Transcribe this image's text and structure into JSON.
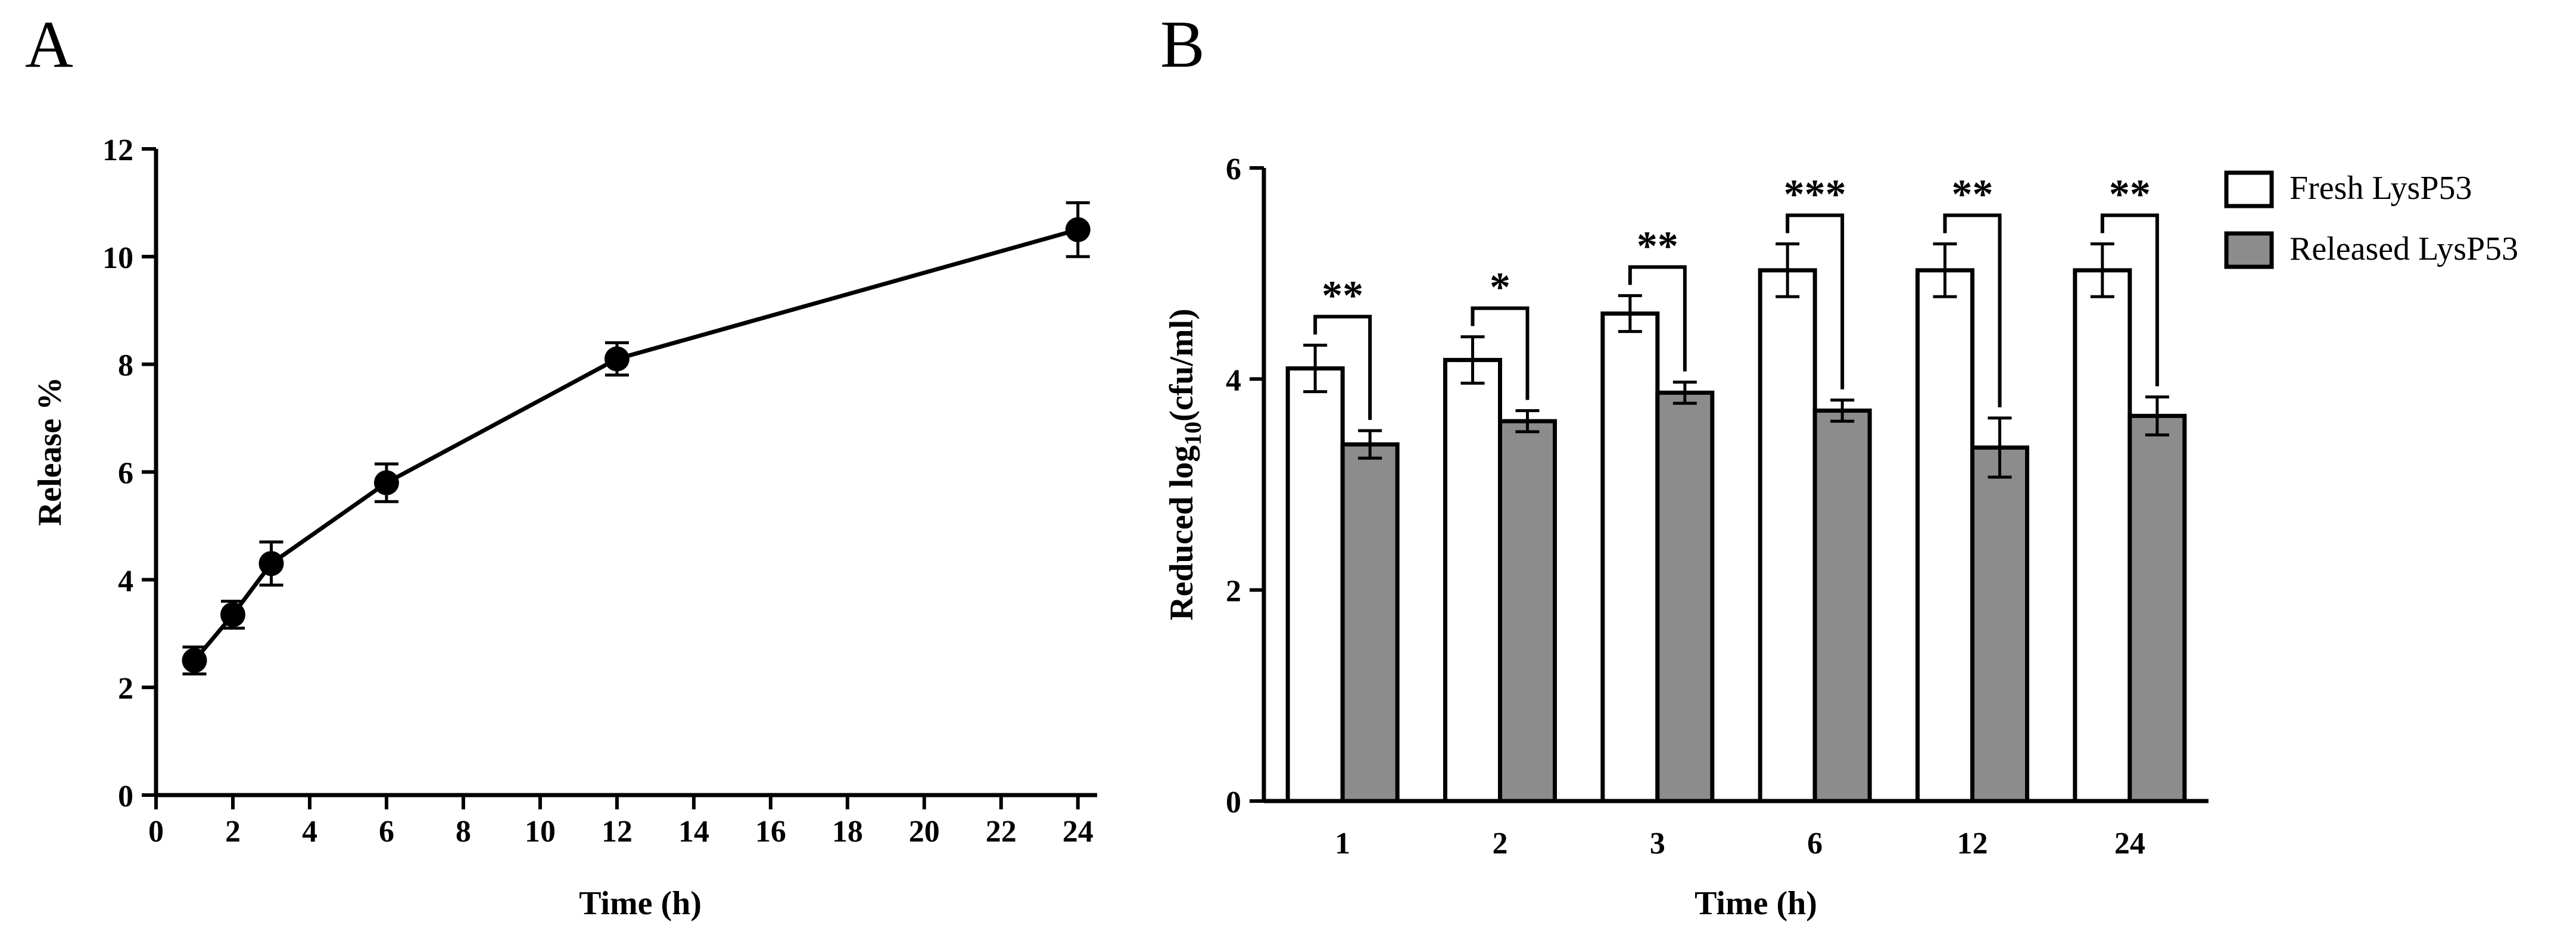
{
  "figure": {
    "panel_a_label": "A",
    "panel_b_label": "B"
  },
  "chart_data": [
    {
      "type": "line",
      "panel": "A",
      "x": [
        1,
        2,
        3,
        6,
        12,
        24
      ],
      "y": [
        2.5,
        3.35,
        4.3,
        5.8,
        8.1,
        10.5
      ],
      "error": [
        0.25,
        0.25,
        0.4,
        0.35,
        0.3,
        0.5
      ],
      "xlabel": "Time (h)",
      "ylabel": "Release %",
      "xlim": [
        0,
        24.5
      ],
      "ylim": [
        0,
        12
      ],
      "xticks": [
        "0",
        "2",
        "4",
        "6",
        "8",
        "10",
        "12",
        "14",
        "16",
        "18",
        "20",
        "22",
        "24"
      ],
      "yticks": [
        "0",
        "2",
        "4",
        "6",
        "8",
        "10",
        "12"
      ],
      "grid": false,
      "marker": "filled-circle",
      "color": "#000000"
    },
    {
      "type": "bar",
      "panel": "B",
      "categories": [
        "1",
        "2",
        "3",
        "6",
        "12",
        "24"
      ],
      "series": [
        {
          "name": "Fresh LysP53",
          "values": [
            4.1,
            4.18,
            4.62,
            5.03,
            5.03,
            5.03
          ],
          "error": [
            0.22,
            0.22,
            0.17,
            0.25,
            0.25,
            0.25
          ],
          "color": "#ffffff"
        },
        {
          "name": "Released LysP53",
          "values": [
            3.38,
            3.6,
            3.87,
            3.7,
            3.35,
            3.65
          ],
          "error": [
            0.13,
            0.1,
            0.1,
            0.1,
            0.28,
            0.18
          ],
          "color": "#8c8c8c"
        }
      ],
      "significance": [
        "**",
        "*",
        "**",
        "***",
        "**",
        "**"
      ],
      "xlabel": "Time (h)",
      "ylabel_main": "Reduced log",
      "ylabel_sub": "10",
      "ylabel_unit": "(cfu/ml)",
      "ylim": [
        0,
        6
      ],
      "yticks": [
        "0",
        "2",
        "4",
        "6"
      ],
      "legend_position": "top-right",
      "grid": false
    }
  ]
}
